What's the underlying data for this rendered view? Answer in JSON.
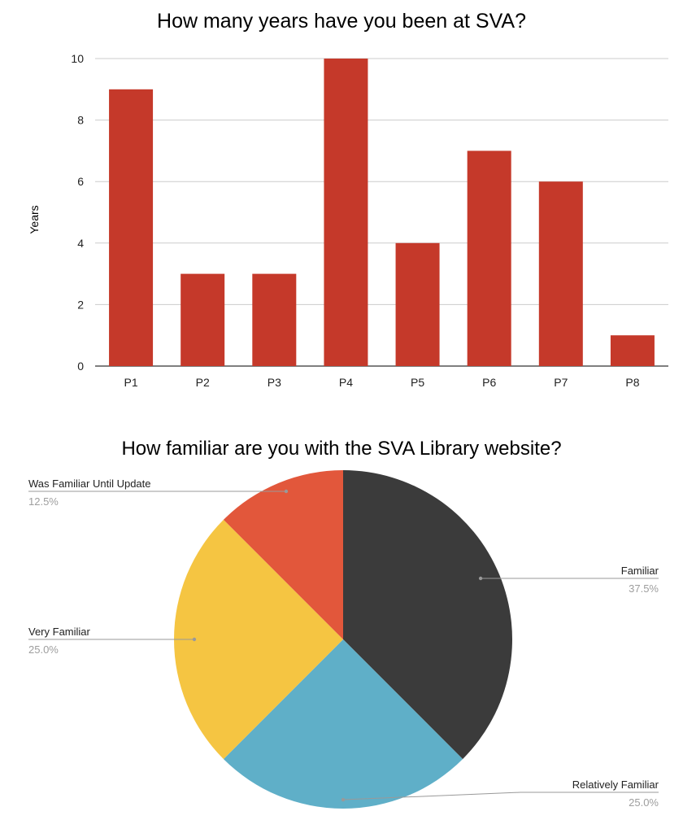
{
  "chart_data": [
    {
      "type": "bar",
      "title": "How many years have you been at SVA?",
      "xlabel": "",
      "ylabel": "Years",
      "categories": [
        "P1",
        "P2",
        "P3",
        "P4",
        "P5",
        "P6",
        "P7",
        "P8"
      ],
      "values": [
        9,
        3,
        3,
        10,
        4,
        7,
        6,
        1
      ],
      "ylim": [
        0,
        10
      ],
      "yticks": [
        "0",
        "2",
        "4",
        "6",
        "8",
        "10"
      ],
      "color": "#c5392a",
      "grid": true
    },
    {
      "type": "pie",
      "title": "How familiar are you with the SVA Library website?",
      "slices": [
        {
          "label": "Familiar",
          "value": 37.5,
          "pct_label": "37.5%",
          "color": "#3b3b3b"
        },
        {
          "label": "Relatively Familiar",
          "value": 25.0,
          "pct_label": "25.0%",
          "color": "#5fafc8"
        },
        {
          "label": "Very Familiar",
          "value": 25.0,
          "pct_label": "25.0%",
          "color": "#f5c542"
        },
        {
          "label": "Was Familiar Until Update",
          "value": 12.5,
          "pct_label": "12.5%",
          "color": "#e2573b"
        }
      ]
    }
  ]
}
